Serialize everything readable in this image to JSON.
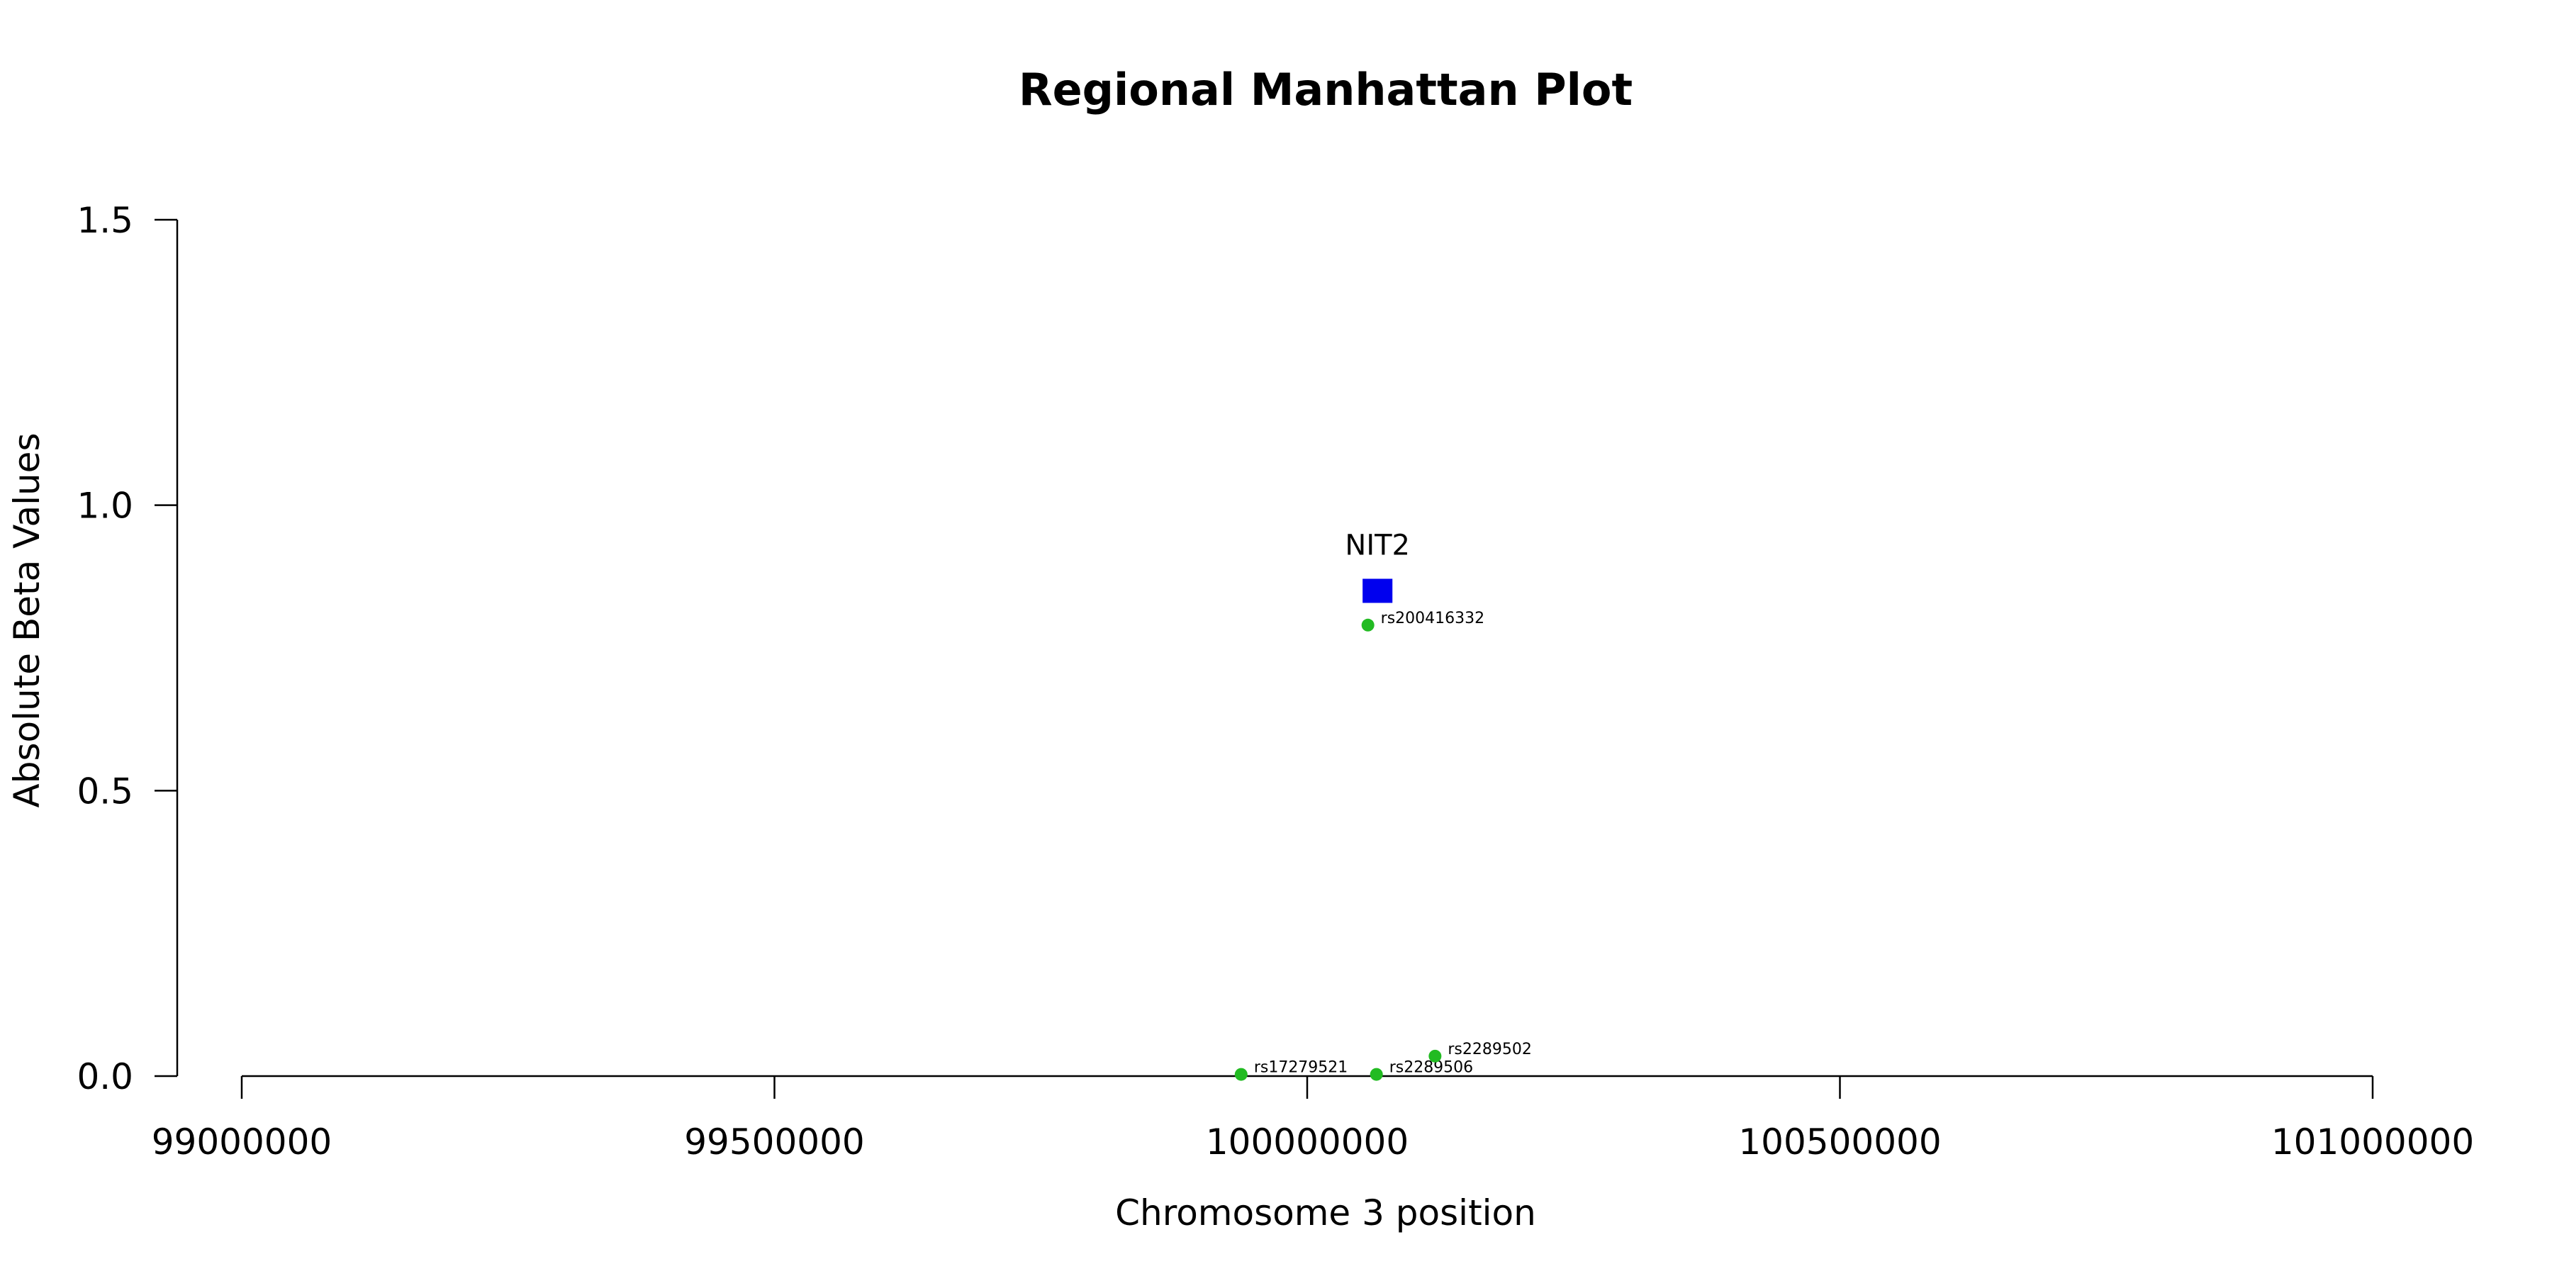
{
  "chart_data": {
    "type": "scatter",
    "title": "Regional Manhattan Plot",
    "xlabel": "Chromosome 3 position",
    "ylabel": "Absolute Beta Values",
    "xlim": [
      99000000,
      101000000
    ],
    "ylim": [
      0,
      1.5
    ],
    "x_ticks": [
      99000000,
      99500000,
      100000000,
      100500000,
      101000000
    ],
    "x_tick_labels": [
      "99000000",
      "99500000",
      "100000000",
      "100500000",
      "101000000"
    ],
    "y_ticks": [
      0,
      0.5,
      1,
      1.5
    ],
    "y_tick_labels": [
      "0.0",
      "0.5",
      "1.0",
      "1.5"
    ],
    "grid": false,
    "colors": {
      "gene": "#0000ee",
      "snp": "#22bb22"
    },
    "genes": [
      {
        "label": "NIT2",
        "x_start": 100052000,
        "x_end": 100080000,
        "y": 0.85
      }
    ],
    "points": [
      {
        "label": "rs200416332",
        "x": 100057000,
        "y": 0.79
      },
      {
        "label": "rs17279521",
        "x": 99938000,
        "y": 0.003
      },
      {
        "label": "rs2289506",
        "x": 100065000,
        "y": 0.003
      },
      {
        "label": "rs2289502",
        "x": 100120000,
        "y": 0.035
      }
    ]
  }
}
